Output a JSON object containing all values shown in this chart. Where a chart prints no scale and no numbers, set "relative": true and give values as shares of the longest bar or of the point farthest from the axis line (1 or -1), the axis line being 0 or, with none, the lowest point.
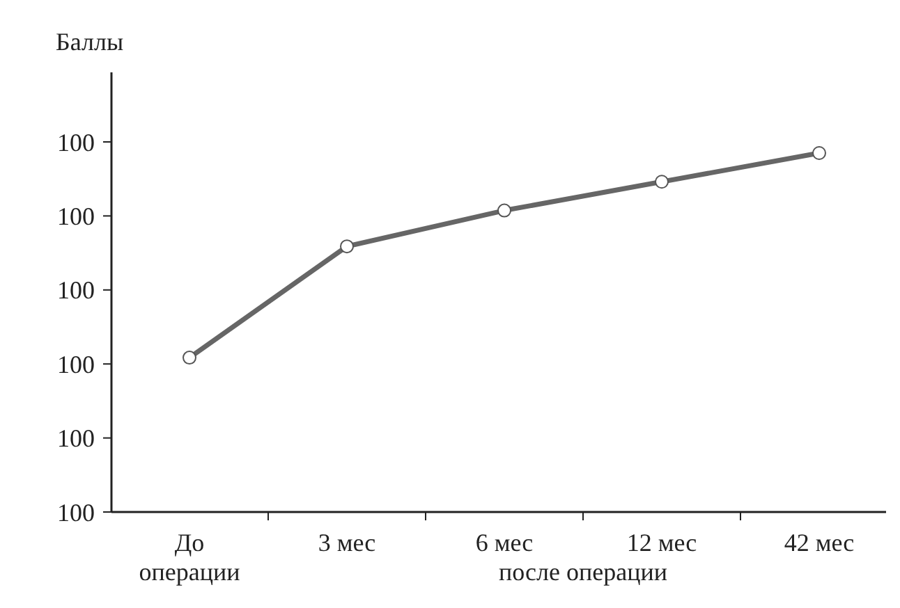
{
  "chart_data": {
    "type": "line",
    "ylabel": "Баллы",
    "xlabel": "после операции",
    "relative": true,
    "categories": [
      "До операции",
      "3 мес",
      "6 мес",
      "12 мес",
      "42 мес"
    ],
    "series": [
      {
        "color": "#666666",
        "values": [
          0.43,
          0.74,
          0.84,
          0.92,
          1
        ]
      }
    ],
    "annotations": [
      "100",
      "100",
      "100",
      "100",
      "100",
      "100"
    ],
    "marker": "circle",
    "line_style": "solid"
  }
}
